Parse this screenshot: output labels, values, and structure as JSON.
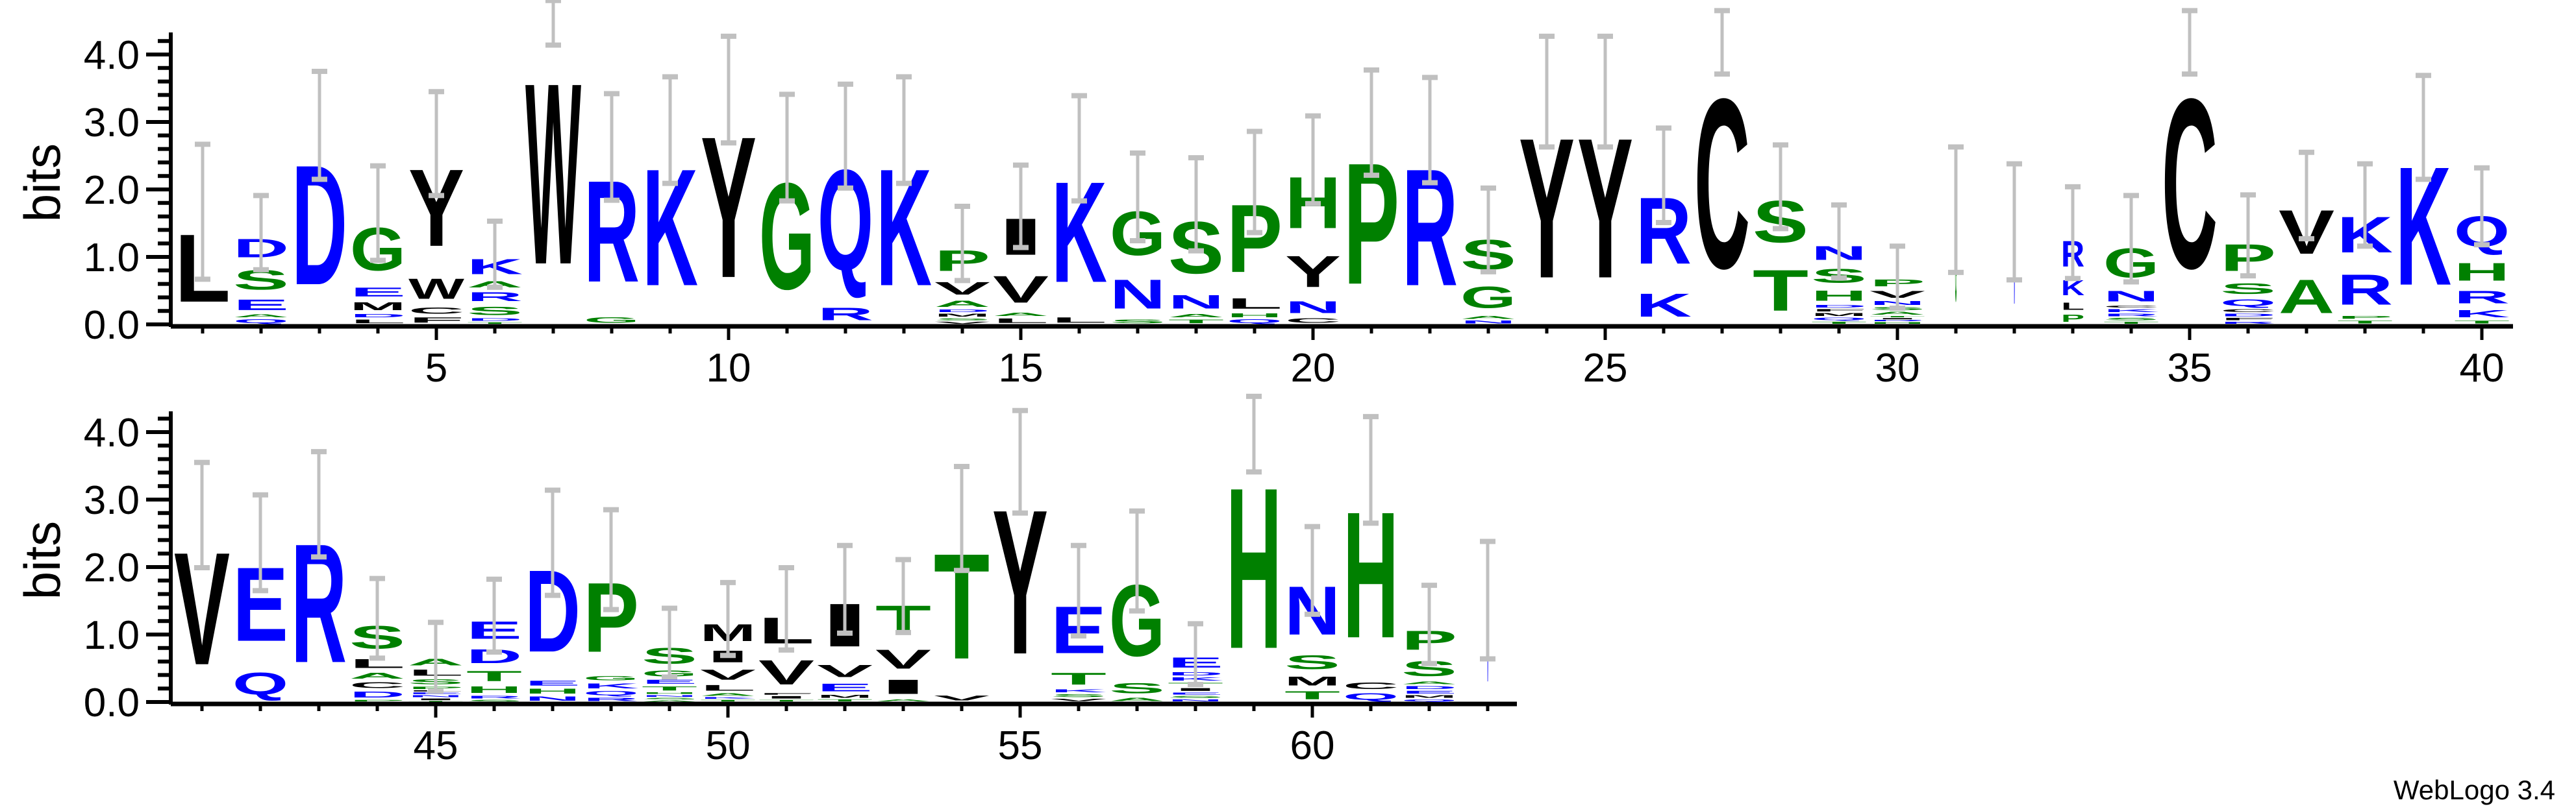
{
  "chart_data": {
    "type": "sequence-logo",
    "ylabel": "bits",
    "ylim": [
      0,
      4.32
    ],
    "y_tick_labels": [
      "0.0",
      "1.0",
      "2.0",
      "3.0",
      "4.0"
    ],
    "x_tick_labels": [
      "5",
      "10",
      "15",
      "20",
      "25",
      "30",
      "35",
      "40",
      "45",
      "50",
      "55",
      "60"
    ],
    "colors": {
      "green": "#008000",
      "blue": "#0000ff",
      "black": "#000000",
      "error_bar": "#c0c0c0"
    },
    "color_groups": {
      "green": "GSTPHA",
      "blue": "DEKRNQ",
      "black": "WYCVILMF"
    },
    "positions": [
      {
        "pos": 1,
        "err": 1.0,
        "stack": [
          [
            "L",
            1.67
          ]
        ]
      },
      {
        "pos": 2,
        "err": 0.55,
        "stack": [
          [
            "Q",
            0.09
          ],
          [
            "A",
            0.07
          ],
          [
            "E",
            0.26
          ],
          [
            "S",
            0.48
          ],
          [
            "D",
            0.46
          ]
        ]
      },
      {
        "pos": 3,
        "err": 0.8,
        "stack": [
          [
            "D",
            2.95
          ]
        ]
      },
      {
        "pos": 4,
        "err": 0.7,
        "stack": [
          [
            "L",
            0.09
          ],
          [
            "D",
            0.08
          ],
          [
            "M",
            0.2
          ],
          [
            "E",
            0.22
          ],
          [
            "G",
            1.06
          ]
        ]
      },
      {
        "pos": 5,
        "err": 0.77,
        "stack": [
          [
            "F",
            0.13
          ],
          [
            "C",
            0.15
          ],
          [
            "W",
            0.5
          ],
          [
            "Y",
            1.9
          ]
        ]
      },
      {
        "pos": 6,
        "err": 0.49,
        "stack": [
          [
            "T",
            0.04
          ],
          [
            "D",
            0.06
          ],
          [
            "S",
            0.2
          ],
          [
            "R",
            0.22
          ],
          [
            "A",
            0.15
          ],
          [
            "K",
            0.37
          ]
        ]
      },
      {
        "pos": 7,
        "err": 0.33,
        "stack": [
          [
            "W",
            4.47
          ]
        ]
      },
      {
        "pos": 8,
        "err": 0.79,
        "stack": [
          [
            "G",
            0.13
          ],
          [
            "R",
            2.5
          ]
        ]
      },
      {
        "pos": 9,
        "err": 0.79,
        "stack": [
          [
            "K",
            2.88
          ]
        ]
      },
      {
        "pos": 10,
        "err": 0.79,
        "stack": [
          [
            "Y",
            3.48
          ]
        ]
      },
      {
        "pos": 11,
        "err": 0.79,
        "stack": [
          [
            "G",
            2.62
          ]
        ]
      },
      {
        "pos": 12,
        "err": 0.77,
        "stack": [
          [
            "R",
            0.31
          ],
          [
            "Q",
            2.48
          ]
        ]
      },
      {
        "pos": 13,
        "err": 0.79,
        "stack": [
          [
            "K",
            2.88
          ]
        ]
      },
      {
        "pos": 14,
        "err": 0.55,
        "stack": [
          [
            "V",
            0.05
          ],
          [
            "S",
            0.05
          ],
          [
            "M",
            0.07
          ],
          [
            "D",
            0.06
          ],
          [
            "A",
            0.15
          ],
          [
            "V",
            0.31
          ],
          [
            "P",
            0.51
          ]
        ]
      },
      {
        "pos": 15,
        "err": 0.61,
        "stack": [
          [
            "L",
            0.11
          ],
          [
            "A",
            0.08
          ],
          [
            "V",
            0.66
          ],
          [
            "I",
            0.9
          ]
        ]
      },
      {
        "pos": 16,
        "err": 0.78,
        "stack": [
          [
            "L",
            0.13
          ],
          [
            "K",
            2.48
          ]
        ]
      },
      {
        "pos": 17,
        "err": 0.65,
        "stack": [
          [
            "S",
            0.09
          ],
          [
            "N",
            0.72
          ],
          [
            "G",
            1.08
          ]
        ]
      },
      {
        "pos": 18,
        "err": 0.69,
        "stack": [
          [
            "T",
            0.09
          ],
          [
            "A",
            0.08
          ],
          [
            "N",
            0.33
          ],
          [
            "S",
            1.28
          ]
        ]
      },
      {
        "pos": 19,
        "err": 0.75,
        "stack": [
          [
            "Q",
            0.09
          ],
          [
            "H",
            0.09
          ],
          [
            "L",
            0.26
          ],
          [
            "P",
            1.67
          ]
        ]
      },
      {
        "pos": 20,
        "err": 0.65,
        "stack": [
          [
            "C",
            0.11
          ],
          [
            "N",
            0.29
          ],
          [
            "Y",
            0.77
          ],
          [
            "H",
            1.27
          ]
        ]
      },
      {
        "pos": 21,
        "err": 0.78,
        "stack": [
          [
            "P",
            2.99
          ]
        ]
      },
      {
        "pos": 22,
        "err": 0.78,
        "stack": [
          [
            "R",
            2.88
          ]
        ]
      },
      {
        "pos": 23,
        "err": 0.62,
        "stack": [
          [
            "N",
            0.07
          ],
          [
            "A",
            0.07
          ],
          [
            "G",
            0.53
          ],
          [
            "S",
            0.73
          ]
        ]
      },
      {
        "pos": 24,
        "err": 0.82,
        "stack": [
          [
            "Y",
            3.45
          ]
        ]
      },
      {
        "pos": 25,
        "err": 0.82,
        "stack": [
          [
            "Y",
            3.45
          ]
        ]
      },
      {
        "pos": 26,
        "err": 0.7,
        "stack": [
          [
            "K",
            0.57
          ],
          [
            "R",
            1.64
          ]
        ]
      },
      {
        "pos": 27,
        "err": 0.47,
        "stack": [
          [
            "C",
            4.18
          ]
        ]
      },
      {
        "pos": 28,
        "err": 0.62,
        "stack": [
          [
            "T",
            1.01
          ],
          [
            "S",
            1.03
          ]
        ]
      },
      {
        "pos": 29,
        "err": 0.54,
        "stack": [
          [
            "T",
            0.05
          ],
          [
            "Q",
            0.06
          ],
          [
            "M",
            0.07
          ],
          [
            "F",
            0.06
          ],
          [
            "D",
            0.06
          ],
          [
            "H",
            0.25
          ],
          [
            "S",
            0.34
          ],
          [
            "N",
            0.34
          ]
        ]
      },
      {
        "pos": 30,
        "err": 0.46,
        "stack": [
          [
            "H",
            0.04
          ],
          [
            "R",
            0.03
          ],
          [
            "I",
            0.03
          ],
          [
            "T",
            0.03
          ],
          [
            "A",
            0.07
          ],
          [
            "S",
            0.07
          ],
          [
            "N",
            0.09
          ],
          [
            "V",
            0.17
          ],
          [
            "P",
            0.17
          ]
        ]
      },
      {
        "pos": 31,
        "err": 0.93,
        "weight": 0.03,
        "stack": [
          [
            "G",
            1.7
          ]
        ]
      },
      {
        "pos": 32,
        "err": 0.86,
        "weight": 0.02,
        "stack": [
          [
            "N",
            1.52
          ]
        ]
      },
      {
        "pos": 33,
        "err": 0.68,
        "weight": 0.42,
        "stack": [
          [
            "P",
            0.18
          ],
          [
            "L",
            0.18
          ],
          [
            "K",
            0.37
          ],
          [
            "R",
            0.63
          ]
        ]
      },
      {
        "pos": 34,
        "err": 0.64,
        "stack": [
          [
            "T",
            0.05
          ],
          [
            "S",
            0.06
          ],
          [
            "R",
            0.06
          ],
          [
            "K",
            0.07
          ],
          [
            "C",
            0.05
          ],
          [
            "N",
            0.26
          ],
          [
            "G",
            0.72
          ]
        ]
      },
      {
        "pos": 35,
        "err": 0.47,
        "stack": [
          [
            "C",
            4.18
          ]
        ]
      },
      {
        "pos": 36,
        "err": 0.6,
        "stack": [
          [
            "R",
            0.05
          ],
          [
            "F",
            0.06
          ],
          [
            "D",
            0.06
          ],
          [
            "C",
            0.07
          ],
          [
            "Q",
            0.16
          ],
          [
            "S",
            0.26
          ],
          [
            "P",
            0.66
          ]
        ]
      },
      {
        "pos": 37,
        "err": 0.64,
        "stack": [
          [
            "A",
            0.83
          ],
          [
            "V",
            1.08
          ]
        ]
      },
      {
        "pos": 38,
        "err": 0.61,
        "stack": [
          [
            "T",
            0.07
          ],
          [
            "P",
            0.07
          ],
          [
            "R",
            0.75
          ],
          [
            "K",
            0.88
          ]
        ]
      },
      {
        "pos": 39,
        "err": 0.77,
        "stack": [
          [
            "K",
            2.92
          ]
        ]
      },
      {
        "pos": 40,
        "err": 0.57,
        "stack": [
          [
            "T",
            0.07
          ],
          [
            "K",
            0.18
          ],
          [
            "R",
            0.31
          ],
          [
            "H",
            0.44
          ],
          [
            "Q",
            0.75
          ]
        ]
      },
      {
        "pos": 41,
        "err": 0.78,
        "stack": [
          [
            "V",
            2.77
          ]
        ]
      },
      {
        "pos": 42,
        "err": 0.71,
        "stack": [
          [
            "Q",
            0.54
          ],
          [
            "E",
            1.82
          ]
        ]
      },
      {
        "pos": 43,
        "err": 0.78,
        "stack": [
          [
            "R",
            2.93
          ]
        ]
      },
      {
        "pos": 44,
        "err": 0.59,
        "stack": [
          [
            "P",
            0.04
          ],
          [
            "D",
            0.14
          ],
          [
            "C",
            0.14
          ],
          [
            "A",
            0.14
          ],
          [
            "L",
            0.22
          ],
          [
            "S",
            0.56
          ]
        ]
      },
      {
        "pos": 45,
        "err": 0.51,
        "stack": [
          [
            "T",
            0.02
          ],
          [
            "I",
            0.04
          ],
          [
            "N",
            0.05
          ],
          [
            "E",
            0.04
          ],
          [
            "L",
            0.03
          ],
          [
            "P",
            0.06
          ],
          [
            "S",
            0.12
          ],
          [
            "L",
            0.15
          ],
          [
            "A",
            0.16
          ]
        ]
      },
      {
        "pos": 46,
        "err": 0.54,
        "stack": [
          [
            "S",
            0.04
          ],
          [
            "R",
            0.06
          ],
          [
            "H",
            0.16
          ],
          [
            "T",
            0.25
          ],
          [
            "D",
            0.34
          ],
          [
            "E",
            0.43
          ]
        ]
      },
      {
        "pos": 47,
        "err": 0.78,
        "stack": [
          [
            "N",
            0.1
          ],
          [
            "H",
            0.12
          ],
          [
            "E",
            0.12
          ],
          [
            "D",
            2.02
          ]
        ]
      },
      {
        "pos": 48,
        "err": 0.74,
        "stack": [
          [
            "R",
            0.08
          ],
          [
            "Q",
            0.1
          ],
          [
            "K",
            0.12
          ],
          [
            "G",
            0.1
          ],
          [
            "P",
            1.71
          ]
        ]
      },
      {
        "pos": 49,
        "err": 0.51,
        "stack": [
          [
            "A",
            0.03
          ],
          [
            "S",
            0.04
          ],
          [
            "N",
            0.04
          ],
          [
            "H",
            0.04
          ],
          [
            "T",
            0.1
          ],
          [
            "E",
            0.1
          ],
          [
            "G",
            0.14
          ],
          [
            "S",
            0.39
          ]
        ]
      },
      {
        "pos": 50,
        "err": 0.54,
        "stack": [
          [
            "T",
            0.04
          ],
          [
            "K",
            0.04
          ],
          [
            "A",
            0.06
          ],
          [
            "L",
            0.14
          ],
          [
            "V",
            0.25
          ],
          [
            "I",
            0.29
          ],
          [
            "M",
            0.41
          ]
        ]
      },
      {
        "pos": 51,
        "err": 0.61,
        "stack": [
          [
            "T",
            0.04
          ],
          [
            "I",
            0.06
          ],
          [
            "F",
            0.04
          ],
          [
            "V",
            0.6
          ],
          [
            "L",
            0.64
          ]
        ]
      },
      {
        "pos": 52,
        "err": 0.65,
        "stack": [
          [
            "T",
            0.05
          ],
          [
            "M",
            0.07
          ],
          [
            "E",
            0.19
          ],
          [
            "V",
            0.3
          ],
          [
            "I",
            1.06
          ]
        ]
      },
      {
        "pos": 53,
        "err": 0.54,
        "stack": [
          [
            "A",
            0.05
          ],
          [
            "I",
            0.35
          ],
          [
            "V",
            0.47
          ],
          [
            "T",
            0.7
          ]
        ]
      },
      {
        "pos": 54,
        "err": 0.77,
        "stack": [
          [
            "V",
            0.12
          ],
          [
            "T",
            2.6
          ]
        ]
      },
      {
        "pos": 55,
        "err": 0.76,
        "stack": [
          [
            "Y",
            3.56
          ]
        ]
      },
      {
        "pos": 56,
        "err": 0.67,
        "stack": [
          [
            "V",
            0.06
          ],
          [
            "S",
            0.07
          ],
          [
            "K",
            0.07
          ],
          [
            "T",
            0.29
          ],
          [
            "E",
            1.16
          ]
        ]
      },
      {
        "pos": 57,
        "err": 0.74,
        "stack": [
          [
            "A",
            0.08
          ],
          [
            "S",
            0.25
          ],
          [
            "G",
            1.76
          ]
        ]
      },
      {
        "pos": 58,
        "err": 0.45,
        "stack": [
          [
            "N",
            0.05
          ],
          [
            "S",
            0.05
          ],
          [
            "E",
            0.05
          ],
          [
            "I",
            0.07
          ],
          [
            "T",
            0.08
          ],
          [
            "K",
            0.08
          ],
          [
            "D",
            0.08
          ],
          [
            "E",
            0.25
          ]
        ]
      },
      {
        "pos": 59,
        "err": 0.56,
        "stack": [
          [
            "H",
            3.97
          ]
        ]
      },
      {
        "pos": 60,
        "err": 0.65,
        "stack": [
          [
            "T",
            0.2
          ],
          [
            "M",
            0.22
          ],
          [
            "S",
            0.34
          ],
          [
            "N",
            1.19
          ]
        ]
      },
      {
        "pos": 61,
        "err": 0.79,
        "stack": [
          [
            "Q",
            0.16
          ],
          [
            "C",
            0.17
          ],
          [
            "H",
            3.11
          ]
        ]
      },
      {
        "pos": 62,
        "err": 0.58,
        "stack": [
          [
            "Q",
            0.05
          ],
          [
            "M",
            0.06
          ],
          [
            "E",
            0.07
          ],
          [
            "D",
            0.07
          ],
          [
            "A",
            0.06
          ],
          [
            "S",
            0.37
          ],
          [
            "P",
            0.47
          ]
        ]
      },
      {
        "pos": 63,
        "err": 0.87,
        "weight": 0.02,
        "stack": [
          [
            "N",
            1.51
          ]
        ]
      }
    ]
  },
  "footer": {
    "credit": "WebLogo 3.4"
  }
}
